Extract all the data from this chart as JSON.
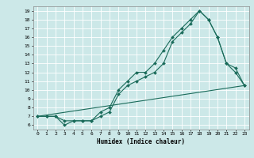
{
  "xlabel": "Humidex (Indice chaleur)",
  "background_color": "#cce8e8",
  "grid_color": "#ffffff",
  "line_color": "#1a6b5a",
  "xlim": [
    -0.5,
    23.5
  ],
  "ylim": [
    5.5,
    19.5
  ],
  "xticks": [
    0,
    1,
    2,
    3,
    4,
    5,
    6,
    7,
    8,
    9,
    10,
    11,
    12,
    13,
    14,
    15,
    16,
    17,
    18,
    19,
    20,
    21,
    22,
    23
  ],
  "yticks": [
    6,
    7,
    8,
    9,
    10,
    11,
    12,
    13,
    14,
    15,
    16,
    17,
    18,
    19
  ],
  "line1_x": [
    0,
    1,
    2,
    3,
    4,
    5,
    6,
    7,
    8,
    9,
    10,
    11,
    12,
    13,
    14,
    15,
    16,
    17,
    18,
    19,
    20,
    21,
    22,
    23
  ],
  "line1_y": [
    7,
    7,
    7,
    6,
    6.5,
    6.5,
    6.5,
    7.5,
    8,
    10,
    11,
    12,
    12,
    13,
    14.5,
    16,
    17,
    18,
    19,
    18,
    16,
    13,
    12.5,
    10.5
  ],
  "line2_x": [
    0,
    1,
    2,
    3,
    4,
    5,
    6,
    7,
    8,
    9,
    10,
    11,
    12,
    13,
    14,
    15,
    16,
    17,
    18,
    19,
    20,
    21,
    22,
    23
  ],
  "line2_y": [
    7,
    7,
    7,
    6.5,
    6.5,
    6.5,
    6.5,
    7,
    7.5,
    9.5,
    10.5,
    11,
    11.5,
    12,
    13,
    15.5,
    16.5,
    17.5,
    19,
    18,
    16,
    13,
    12,
    10.5
  ],
  "line3_x": [
    0,
    23
  ],
  "line3_y": [
    7,
    10.5
  ]
}
